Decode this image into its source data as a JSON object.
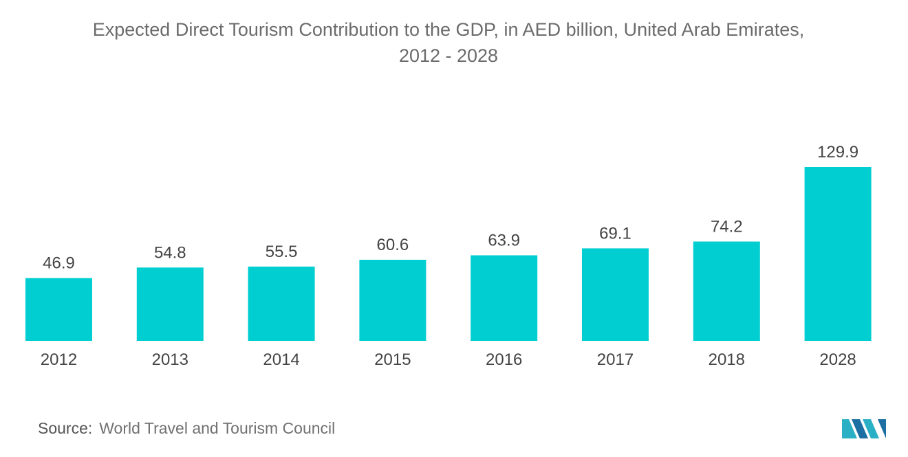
{
  "title_line1": "Expected Direct Tourism Contribution to the GDP, in AED billion, United Arab Emirates,",
  "title_line2": "2012 - 2028",
  "source": {
    "label": "Source:",
    "text": "World Travel and Tourism Council"
  },
  "colors": {
    "bar": "#00CED1",
    "text": "#444444",
    "title": "#6b6b6b"
  },
  "chart_data": {
    "type": "bar",
    "categories": [
      "2012",
      "2013",
      "2014",
      "2015",
      "2016",
      "2017",
      "2018",
      "2028"
    ],
    "values": [
      46.9,
      54.8,
      55.5,
      60.6,
      63.9,
      69.1,
      74.2,
      129.9
    ],
    "value_labels": [
      "46.9",
      "54.8",
      "55.5",
      "60.6",
      "63.9",
      "69.1",
      "74.2",
      "129.9"
    ],
    "title": "Expected Direct Tourism Contribution to the GDP, in AED billion, United Arab Emirates, 2012 - 2028",
    "xlabel": "",
    "ylabel": "",
    "ylim": [
      0,
      129.9
    ],
    "grid": false,
    "legend": "none"
  }
}
